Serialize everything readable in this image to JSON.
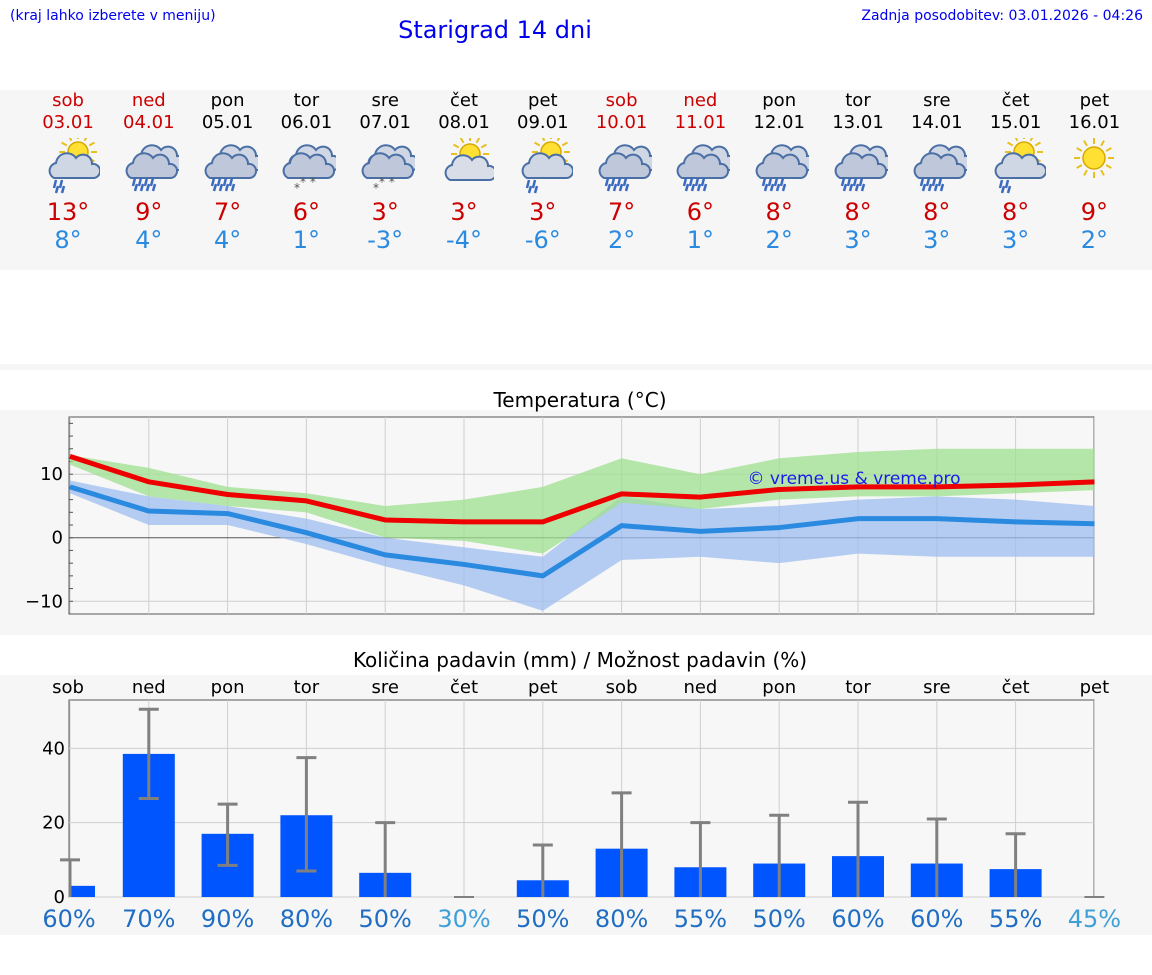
{
  "header": {
    "hint": "(kraj lahko izberete v meniju)",
    "title": "Starigrad 14 dni",
    "updated": "Zadnja posodobitev: 03.01.2026 - 04:26"
  },
  "days": [
    {
      "name": "sob",
      "date": "03.01",
      "weekend": true,
      "icon": "partly-sunny-rain-icon",
      "max": "13°",
      "min": "8°"
    },
    {
      "name": "ned",
      "date": "04.01",
      "weekend": true,
      "icon": "heavy-rain-cloud-icon",
      "max": "9°",
      "min": "4°"
    },
    {
      "name": "pon",
      "date": "05.01",
      "weekend": false,
      "icon": "heavy-rain-cloud-icon",
      "max": "7°",
      "min": "4°"
    },
    {
      "name": "tor",
      "date": "06.01",
      "weekend": false,
      "icon": "snow-cloud-icon",
      "max": "6°",
      "min": "1°"
    },
    {
      "name": "sre",
      "date": "07.01",
      "weekend": false,
      "icon": "snow-cloud-icon",
      "max": "3°",
      "min": "-3°"
    },
    {
      "name": "čet",
      "date": "08.01",
      "weekend": false,
      "icon": "partly-sunny-icon",
      "max": "3°",
      "min": "-4°"
    },
    {
      "name": "pet",
      "date": "09.01",
      "weekend": false,
      "icon": "partly-sunny-rain-icon",
      "max": "3°",
      "min": "-6°"
    },
    {
      "name": "sob",
      "date": "10.01",
      "weekend": true,
      "icon": "heavy-rain-cloud-icon",
      "max": "7°",
      "min": "2°"
    },
    {
      "name": "ned",
      "date": "11.01",
      "weekend": true,
      "icon": "heavy-rain-cloud-icon",
      "max": "6°",
      "min": "1°"
    },
    {
      "name": "pon",
      "date": "12.01",
      "weekend": false,
      "icon": "heavy-rain-cloud-icon",
      "max": "8°",
      "min": "2°"
    },
    {
      "name": "tor",
      "date": "13.01",
      "weekend": false,
      "icon": "heavy-rain-cloud-icon",
      "max": "8°",
      "min": "3°"
    },
    {
      "name": "sre",
      "date": "14.01",
      "weekend": false,
      "icon": "heavy-rain-cloud-icon",
      "max": "8°",
      "min": "3°"
    },
    {
      "name": "čet",
      "date": "15.01",
      "weekend": false,
      "icon": "partly-sunny-rain-icon",
      "max": "8°",
      "min": "3°"
    },
    {
      "name": "pet",
      "date": "16.01",
      "weekend": false,
      "icon": "sun-icon",
      "max": "9°",
      "min": "2°"
    }
  ],
  "colors": {
    "max_line": "#ee0000",
    "min_line": "#2a8ae0",
    "max_band": "#9fe08f",
    "min_band": "#9dbdf0",
    "bar": "#0055ff",
    "err": "#808080",
    "weekend": "#cc0000",
    "prob_high": "#1f6ec4",
    "prob_low": "#3fa0d8"
  },
  "chart_data": [
    {
      "type": "line",
      "title": "Temperatura (°C)",
      "xlabel": "",
      "ylabel": "°C",
      "ylim": [
        -12,
        19
      ],
      "yticks": [
        "10",
        "0",
        "−10"
      ],
      "ytick_values": [
        10,
        0,
        -10
      ],
      "x": [
        0,
        1,
        2,
        3,
        4,
        5,
        6,
        7,
        8,
        9,
        10,
        11,
        12,
        13
      ],
      "series": [
        {
          "name": "max",
          "values": [
            12.8,
            8.8,
            6.8,
            5.8,
            2.8,
            2.5,
            2.5,
            6.9,
            6.4,
            7.6,
            8.0,
            8.0,
            8.3,
            8.8
          ]
        },
        {
          "name": "min",
          "values": [
            8.0,
            4.2,
            3.8,
            0.8,
            -2.7,
            -4.2,
            -6.0,
            1.9,
            1.0,
            1.6,
            3.0,
            3.0,
            2.5,
            2.2
          ]
        },
        {
          "name": "max_range_low",
          "values": [
            11.5,
            6.5,
            5.0,
            4.0,
            0.0,
            -0.5,
            -2.5,
            5.5,
            4.5,
            6.0,
            6.5,
            6.5,
            7.0,
            7.5
          ]
        },
        {
          "name": "max_range_high",
          "values": [
            13.0,
            11.0,
            8.0,
            7.0,
            5.0,
            6.0,
            8.0,
            12.5,
            10.0,
            12.5,
            13.5,
            14.0,
            14.0,
            14.0
          ]
        },
        {
          "name": "min_range_low",
          "values": [
            7.0,
            2.0,
            2.0,
            -1.0,
            -4.5,
            -7.5,
            -11.5,
            -3.5,
            -3.0,
            -4.0,
            -2.5,
            -3.0,
            -3.0,
            -3.0
          ]
        },
        {
          "name": "min_range_high",
          "values": [
            9.0,
            6.5,
            5.0,
            3.0,
            0.0,
            -1.5,
            -3.0,
            6.5,
            4.5,
            5.0,
            6.0,
            6.5,
            6.0,
            5.0
          ]
        }
      ],
      "watermark": "© vreme.us & vreme.pro"
    },
    {
      "type": "bar",
      "title": "Količina padavin (mm) / Možnost padavin (%)",
      "categories": [
        "sob",
        "ned",
        "pon",
        "tor",
        "sre",
        "čet",
        "pet",
        "sob",
        "ned",
        "pon",
        "tor",
        "sre",
        "čet",
        "pet"
      ],
      "values": [
        3,
        38.5,
        17,
        22,
        6.5,
        0,
        4.5,
        13,
        8,
        9,
        11,
        9,
        7.5,
        0
      ],
      "err_low": [
        0,
        26.5,
        8.5,
        7,
        0,
        0,
        0,
        0,
        0,
        0,
        0,
        0,
        0,
        0
      ],
      "err_high": [
        10,
        50.5,
        25,
        37.5,
        20,
        0,
        14,
        28,
        20,
        22,
        25.5,
        21,
        17,
        0
      ],
      "ylim": [
        0,
        53
      ],
      "yticks": [
        "40",
        "20",
        "0"
      ],
      "ytick_values": [
        40,
        20,
        0
      ],
      "probability": [
        "60%",
        "70%",
        "90%",
        "80%",
        "50%",
        "30%",
        "50%",
        "80%",
        "55%",
        "50%",
        "60%",
        "60%",
        "55%",
        "45%"
      ]
    }
  ]
}
